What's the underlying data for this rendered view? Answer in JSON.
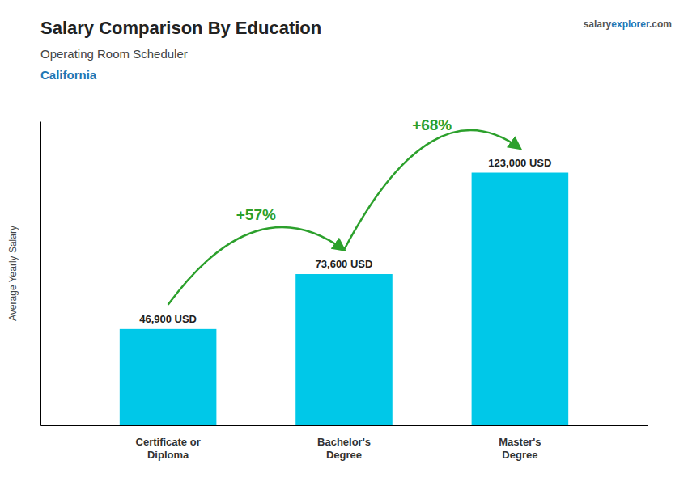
{
  "chart_data": {
    "type": "bar",
    "title": "Salary Comparison By Education",
    "subtitle": "Operating Room Scheduler",
    "location": "California",
    "brand": [
      "salary",
      "explorer",
      ".com"
    ],
    "y_label": "Average Yearly Salary",
    "categories": [
      "Certificate or\nDiploma",
      "Bachelor's\nDegree",
      "Master's\nDegree"
    ],
    "values": [
      46900,
      73600,
      123000
    ],
    "value_labels": [
      "46,900 USD",
      "73,600 USD",
      "123,000 USD"
    ],
    "data_labels": true,
    "annotations": [
      "+57%",
      "+68%"
    ],
    "color": "#00c8e8",
    "ylim": [
      0,
      148000
    ],
    "yticks": [],
    "tick_labels": "x",
    "grid": false
  }
}
